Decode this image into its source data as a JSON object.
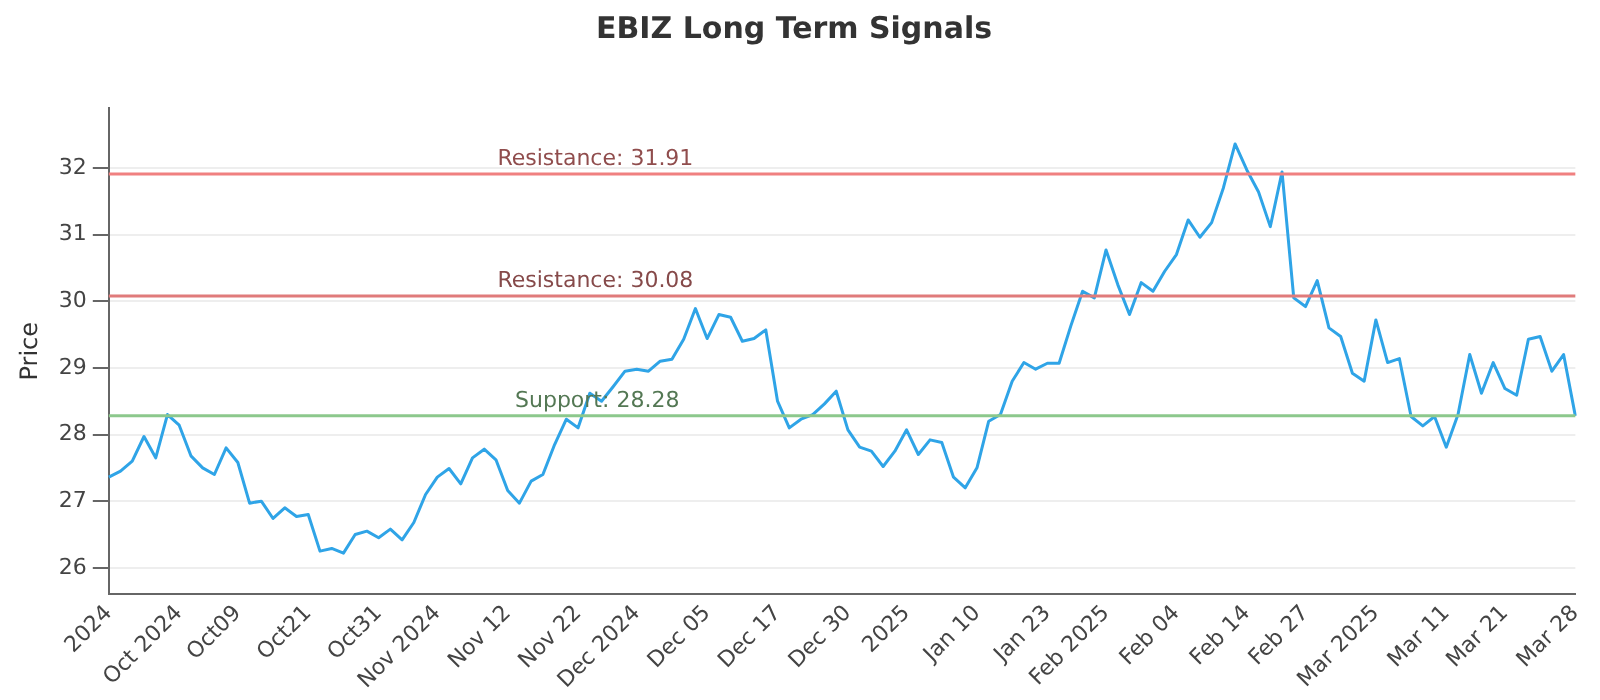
{
  "chart_data": {
    "type": "line",
    "title": "EBIZ Long Term Signals",
    "ylabel": "Price",
    "categories": [
      "2024",
      null,
      null,
      null,
      null,
      null,
      "Oct 2024",
      null,
      null,
      null,
      null,
      "Oct09",
      null,
      null,
      null,
      null,
      null,
      "Oct21",
      null,
      null,
      null,
      null,
      null,
      "Oct31",
      null,
      null,
      null,
      null,
      "Nov 2024",
      null,
      null,
      null,
      null,
      null,
      "Nov 12",
      null,
      null,
      null,
      null,
      null,
      "Nov 22",
      null,
      null,
      null,
      null,
      "Dec 2024",
      null,
      null,
      null,
      null,
      null,
      "Dec 05",
      null,
      null,
      null,
      null,
      null,
      "Dec 17",
      null,
      null,
      null,
      null,
      null,
      "Dec 30",
      null,
      null,
      null,
      null,
      "2025",
      null,
      null,
      null,
      null,
      null,
      "Jan 10",
      null,
      null,
      null,
      null,
      null,
      "Jan 23",
      null,
      null,
      null,
      null,
      "Feb 2025",
      null,
      null,
      null,
      null,
      null,
      "Feb 04",
      null,
      null,
      null,
      null,
      null,
      "Feb 14",
      null,
      null,
      null,
      null,
      "Feb 27",
      null,
      null,
      null,
      null,
      null,
      "Mar 2025",
      null,
      null,
      null,
      null,
      null,
      "Mar 11",
      null,
      null,
      null,
      null,
      "Mar 21",
      null,
      null,
      null,
      null,
      null,
      "Mar 28"
    ],
    "series": [
      {
        "color": "#2fa4e7",
        "values": [
          27.36,
          27.45,
          27.6,
          27.97,
          27.65,
          28.3,
          28.14,
          27.68,
          27.5,
          27.4,
          27.8,
          27.58,
          26.97,
          27.0,
          26.74,
          26.9,
          26.77,
          26.8,
          26.25,
          26.29,
          26.22,
          26.5,
          26.55,
          26.45,
          26.58,
          26.42,
          26.68,
          27.1,
          27.36,
          27.49,
          27.26,
          27.65,
          27.78,
          27.62,
          27.16,
          26.97,
          27.3,
          27.4,
          27.85,
          28.23,
          28.1,
          28.62,
          28.5,
          28.72,
          28.95,
          28.98,
          28.95,
          29.1,
          29.13,
          29.43,
          29.89,
          29.44,
          29.8,
          29.76,
          29.4,
          29.44,
          29.57,
          28.5,
          28.1,
          28.23,
          28.3,
          28.46,
          28.65,
          28.07,
          27.81,
          27.75,
          27.52,
          27.75,
          28.07,
          27.7,
          27.92,
          27.88,
          27.36,
          27.2,
          27.5,
          28.2,
          28.3,
          28.8,
          29.08,
          28.98,
          29.07,
          29.07,
          29.63,
          30.15,
          30.05,
          30.77,
          30.25,
          29.8,
          30.28,
          30.15,
          30.45,
          30.7,
          31.22,
          30.96,
          31.18,
          31.7,
          32.36,
          31.97,
          31.64,
          31.12,
          31.94,
          30.05,
          29.92,
          30.31,
          29.6,
          29.47,
          28.92,
          28.8,
          29.72,
          29.08,
          29.14,
          28.27,
          28.13,
          28.27,
          27.81,
          28.3,
          29.2,
          28.62,
          29.08,
          28.69,
          28.59,
          29.43,
          29.47,
          28.95,
          29.2,
          28.28
        ]
      }
    ],
    "ylim": [
      25.6,
      32.9
    ],
    "yticks": [
      26,
      27,
      28,
      29,
      30,
      31,
      32
    ],
    "grid": "y",
    "legend": false,
    "marker": "none",
    "line_style": "solid",
    "ref_lines": [
      {
        "axis": "y",
        "value": 31.91,
        "label": "Resistance: 31.91",
        "color": "#f08080"
      },
      {
        "axis": "y",
        "value": 30.08,
        "label": "Resistance: 30.08",
        "color": "#e07b7b"
      },
      {
        "axis": "y",
        "value": 28.28,
        "label": "Support: 28.28",
        "color": "#8cc88c"
      }
    ]
  }
}
